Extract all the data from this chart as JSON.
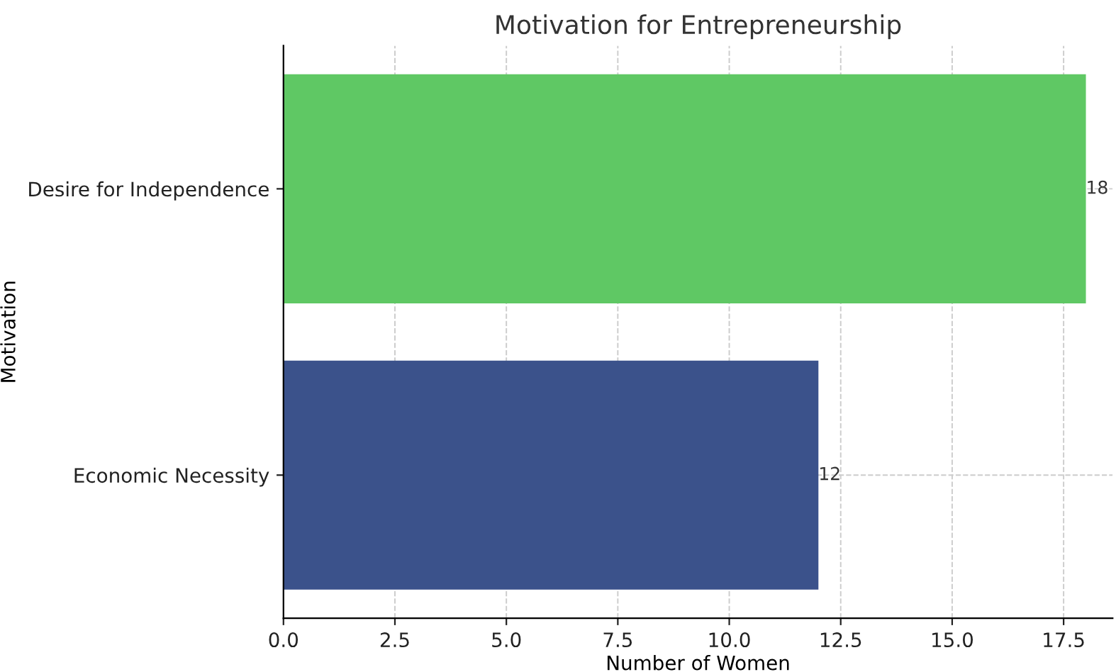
{
  "chart_data": {
    "type": "bar",
    "orientation": "horizontal",
    "title": "Motivation for Entrepreneurship",
    "xlabel": "Number of Women",
    "ylabel": "Motivation",
    "categories": [
      "Desire for Independence",
      "Economic Necessity"
    ],
    "values": [
      18,
      12
    ],
    "colors": [
      "#5fc864",
      "#3b528b"
    ],
    "xlim": [
      0,
      18.6
    ],
    "xticks": [
      {
        "value": 0,
        "label": "0.0"
      },
      2.5,
      {
        "value": 5,
        "label": "5.0"
      },
      7.5,
      {
        "value": 10,
        "label": "10.0"
      },
      12.5,
      {
        "value": 15,
        "label": "15.0"
      },
      17.5
    ],
    "grid": true,
    "data_labels": true
  }
}
